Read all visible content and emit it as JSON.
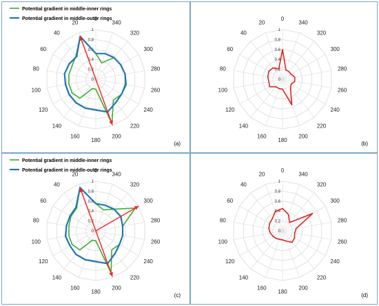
{
  "chart_data": [
    {
      "type": "radar",
      "panel_label": "(a)",
      "angles": [
        "0",
        "20",
        "40",
        "60",
        "80",
        "100",
        "120",
        "140",
        "160",
        "180",
        "200",
        "220",
        "240",
        "260",
        "280",
        "300",
        "320",
        "340"
      ],
      "radial_ticks": [
        "0",
        "0.2",
        "0.4",
        "0.6",
        "0.8",
        "1"
      ],
      "rlim": [
        0,
        1
      ],
      "legend": "top-left",
      "series": [
        {
          "name": "Potential gradient in middle-inner rings",
          "color": "#3cab32",
          "values": [
            0.52,
            0.92,
            0.62,
            0.55,
            0.55,
            0.55,
            0.55,
            0.5,
            0.2,
            0.2,
            0.95,
            0.55,
            0.6,
            0.6,
            0.6,
            0.58,
            0.57,
            0.35
          ]
        },
        {
          "name": "Potential gradient in middle-outer rings",
          "color": "#1f77b4",
          "values": [
            0.52,
            0.92,
            0.6,
            0.62,
            0.64,
            0.62,
            0.62,
            0.62,
            0.62,
            0.62,
            0.7,
            0.62,
            0.6,
            0.62,
            0.6,
            0.58,
            0.57,
            0.55
          ]
        }
      ],
      "arrows": [
        {
          "color": "#ff2020",
          "from_angle": 20,
          "from_r": 0.92,
          "to_angle": 200,
          "to_r": 0.98
        }
      ]
    },
    {
      "type": "radar",
      "panel_label": "(b)",
      "angles": [
        "0",
        "20",
        "40",
        "60",
        "80",
        "100",
        "120",
        "140",
        "160",
        "180",
        "200",
        "220",
        "240",
        "260",
        "280",
        "300",
        "320",
        "340"
      ],
      "radial_ticks": [
        "0",
        "0.2",
        "0.4",
        "0.6",
        "0.8",
        "1"
      ],
      "rlim": [
        0,
        1
      ],
      "series": [
        {
          "color": "#e02020",
          "values": [
            0.6,
            0.22,
            0.3,
            0.32,
            0.3,
            0.28,
            0.3,
            0.2,
            0.2,
            0.2,
            0.55,
            0.25,
            0.2,
            0.25,
            0.25,
            0.2,
            0.2,
            0.2
          ]
        }
      ]
    },
    {
      "type": "radar",
      "panel_label": "(c)",
      "angles": [
        "0",
        "20",
        "40",
        "60",
        "80",
        "100",
        "120",
        "140",
        "160",
        "180",
        "200",
        "220",
        "240",
        "260",
        "280",
        "300",
        "320",
        "340"
      ],
      "radial_ticks": [
        "0",
        "0.2",
        "0.4",
        "0.6",
        "0.8",
        "1"
      ],
      "rlim": [
        0,
        1
      ],
      "legend": "top-left",
      "series": [
        {
          "name": "Potential gradient in middle-inner  rings",
          "color": "#3cab32",
          "values": [
            0.55,
            0.93,
            0.6,
            0.58,
            0.55,
            0.55,
            0.55,
            0.5,
            0.2,
            0.2,
            0.9,
            0.5,
            0.55,
            0.55,
            0.55,
            0.92,
            0.57,
            0.45
          ]
        },
        {
          "name": "Potential gradient in middle-outer  rings",
          "color": "#1f77b4",
          "values": [
            0.55,
            0.93,
            0.62,
            0.6,
            0.6,
            0.62,
            0.6,
            0.62,
            0.62,
            0.62,
            0.7,
            0.6,
            0.55,
            0.55,
            0.55,
            0.58,
            0.57,
            0.55
          ]
        }
      ],
      "arrows": [
        {
          "color": "#ff2020",
          "from_angle": 20,
          "from_r": 0.92,
          "to_angle": 200,
          "to_r": 0.98
        },
        {
          "color": "#ff2020",
          "from_angle": 0,
          "from_r": 0,
          "to_angle": 300,
          "to_r": 1.0
        }
      ]
    },
    {
      "type": "radar",
      "panel_label": "(d)",
      "angles": [
        "0",
        "20",
        "40",
        "60",
        "80",
        "100",
        "120",
        "140",
        "160",
        "180",
        "200",
        "220",
        "240",
        "260",
        "280",
        "300",
        "320",
        "340"
      ],
      "radial_ticks": [
        "0",
        "0.2",
        "0.4",
        "0.6",
        "0.8",
        "1"
      ],
      "rlim": [
        0,
        1
      ],
      "series": [
        {
          "color": "#e02020",
          "values": [
            0.45,
            0.42,
            0.32,
            0.3,
            0.28,
            0.25,
            0.22,
            0.2,
            0.18,
            0.18,
            0.22,
            0.3,
            0.28,
            0.25,
            0.28,
            0.7,
            0.22,
            0.35
          ]
        }
      ]
    }
  ]
}
